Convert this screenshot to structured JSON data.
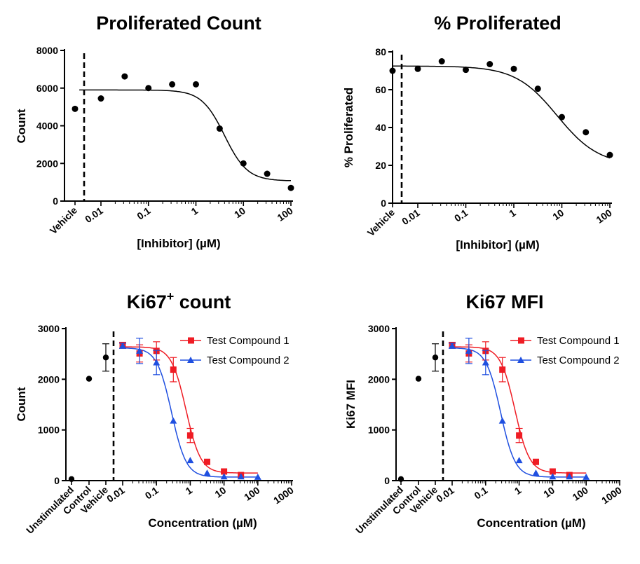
{
  "colors": {
    "compound1": "#ef1c24",
    "compound2": "#1f4fe0",
    "points": "#000000"
  },
  "chart_data": [
    {
      "type": "scatter",
      "title": "Proliferated Count",
      "xlabel": "[Inhibitor] (µM)",
      "ylabel": "Count",
      "xscale": "log",
      "xlim": [
        0.0025,
        100
      ],
      "ylim": [
        0,
        8000
      ],
      "yticks": [
        0,
        2000,
        4000,
        6000,
        8000
      ],
      "ytick_labels": [
        "0",
        "2000",
        "4000",
        "6000",
        "8000"
      ],
      "xticks": [
        0.01,
        0.1,
        1,
        10,
        100
      ],
      "xtick_labels": [
        "0.01",
        "0.1",
        "1",
        "10",
        "100"
      ],
      "categorical_x_labels": [
        "Vehicle"
      ],
      "vehicle_value": 4900,
      "series": [
        {
          "name": "Inhibitor",
          "x": [
            0.01,
            0.0316,
            0.1,
            0.316,
            1,
            3.16,
            10,
            31.6,
            100
          ],
          "y": [
            5450,
            6620,
            6000,
            6200,
            6200,
            3850,
            2000,
            1450,
            700
          ]
        }
      ],
      "fit": {
        "top": 5900,
        "bottom": 1070,
        "ic50": 4.0,
        "hill": 1.8
      }
    },
    {
      "type": "scatter",
      "title": "% Proliferated",
      "xlabel": "[Inhibitor] (µM)",
      "ylabel": "% Proliferated",
      "xscale": "log",
      "xlim": [
        0.0025,
        100
      ],
      "ylim": [
        0,
        80
      ],
      "yticks": [
        0,
        20,
        40,
        60,
        80
      ],
      "ytick_labels": [
        "0",
        "20",
        "40",
        "60",
        "80"
      ],
      "xticks": [
        0.01,
        0.1,
        1,
        10,
        100
      ],
      "xtick_labels": [
        "0.01",
        "0.1",
        "1",
        "10",
        "100"
      ],
      "categorical_x_labels": [
        "Vehicle"
      ],
      "vehicle_value": 70,
      "series": [
        {
          "name": "Inhibitor",
          "x": [
            0.01,
            0.0316,
            0.1,
            0.316,
            1,
            3.16,
            10,
            31.6,
            100
          ],
          "y": [
            71,
            75,
            70.5,
            73.5,
            71,
            60.5,
            45.5,
            37.5,
            25.5
          ]
        }
      ],
      "fit": {
        "top": 72.5,
        "bottom": 20,
        "ic50": 8.0,
        "hill": 1.0
      }
    },
    {
      "type": "scatter",
      "title": "Ki67",
      "title_superscript": "+",
      "title_suffix": " count",
      "xlabel": "Concentration (µM)",
      "ylabel": "Count",
      "xscale": "log",
      "xlim": [
        0.007,
        1000
      ],
      "ylim": [
        0,
        3000
      ],
      "yticks": [
        0,
        1000,
        2000,
        3000
      ],
      "ytick_labels": [
        "0",
        "1000",
        "2000",
        "3000"
      ],
      "xticks": [
        0.01,
        0.1,
        1,
        10,
        100,
        1000
      ],
      "xtick_labels": [
        "0.01",
        "0.1",
        "1",
        "10",
        "100",
        "1000"
      ],
      "categorical_x_labels": [
        "Unstimulated",
        "Control",
        "Vehicle"
      ],
      "controls": {
        "values": [
          30,
          2010,
          2430
        ],
        "errors": [
          0,
          0,
          270
        ]
      },
      "legend": {
        "position": "top-right",
        "entries": [
          "Test Compound 1",
          "Test Compound 2"
        ]
      },
      "series": [
        {
          "name": "Test Compound 1",
          "x": [
            0.01,
            0.0316,
            0.1,
            0.316,
            1,
            3.16,
            10,
            31.6
          ],
          "y": [
            2670,
            2510,
            2560,
            2190,
            890,
            370,
            180,
            110
          ],
          "err": [
            60,
            170,
            180,
            240,
            140,
            0,
            0,
            0
          ]
        },
        {
          "name": "Test Compound 2",
          "x": [
            0.01,
            0.0316,
            0.1,
            0.316,
            1,
            3.16,
            10,
            31.6,
            100
          ],
          "y": [
            2660,
            2560,
            2330,
            1180,
            400,
            150,
            80,
            80,
            70
          ],
          "err": [
            50,
            250,
            240,
            0,
            0,
            0,
            0,
            0,
            0
          ]
        }
      ],
      "fits": [
        {
          "top": 2640,
          "bottom": 150,
          "ic50": 0.75,
          "hill": 2.0
        },
        {
          "top": 2620,
          "bottom": 70,
          "ic50": 0.28,
          "hill": 2.0
        }
      ]
    },
    {
      "type": "scatter",
      "title": "Ki67 MFI",
      "xlabel": "Concentration (µM)",
      "ylabel": "Ki67 MFI",
      "xscale": "log",
      "xlim": [
        0.007,
        1000
      ],
      "ylim": [
        0,
        3000
      ],
      "yticks": [
        0,
        1000,
        2000,
        3000
      ],
      "ytick_labels": [
        "0",
        "1000",
        "2000",
        "3000"
      ],
      "xticks": [
        0.01,
        0.1,
        1,
        10,
        100,
        1000
      ],
      "xtick_labels": [
        "0.01",
        "0.1",
        "1",
        "10",
        "100",
        "1000"
      ],
      "categorical_x_labels": [
        "Unstimulated",
        "Control",
        "Vehicle"
      ],
      "controls": {
        "values": [
          30,
          2010,
          2430
        ],
        "errors": [
          0,
          0,
          270
        ]
      },
      "legend": {
        "position": "top-right",
        "entries": [
          "Test Compound 1",
          "Test Compound 2"
        ]
      },
      "series": [
        {
          "name": "Test Compound 1",
          "x": [
            0.01,
            0.0316,
            0.1,
            0.316,
            1,
            3.16,
            10,
            31.6
          ],
          "y": [
            2670,
            2510,
            2560,
            2190,
            890,
            370,
            180,
            110
          ],
          "err": [
            60,
            170,
            180,
            240,
            140,
            0,
            0,
            0
          ]
        },
        {
          "name": "Test Compound 2",
          "x": [
            0.01,
            0.0316,
            0.1,
            0.316,
            1,
            3.16,
            10,
            31.6,
            100
          ],
          "y": [
            2660,
            2560,
            2330,
            1180,
            400,
            150,
            80,
            80,
            70
          ],
          "err": [
            50,
            250,
            240,
            0,
            0,
            0,
            0,
            0,
            0
          ]
        }
      ],
      "fits": [
        {
          "top": 2640,
          "bottom": 150,
          "ic50": 0.75,
          "hill": 2.0
        },
        {
          "top": 2620,
          "bottom": 70,
          "ic50": 0.28,
          "hill": 2.0
        }
      ]
    }
  ]
}
